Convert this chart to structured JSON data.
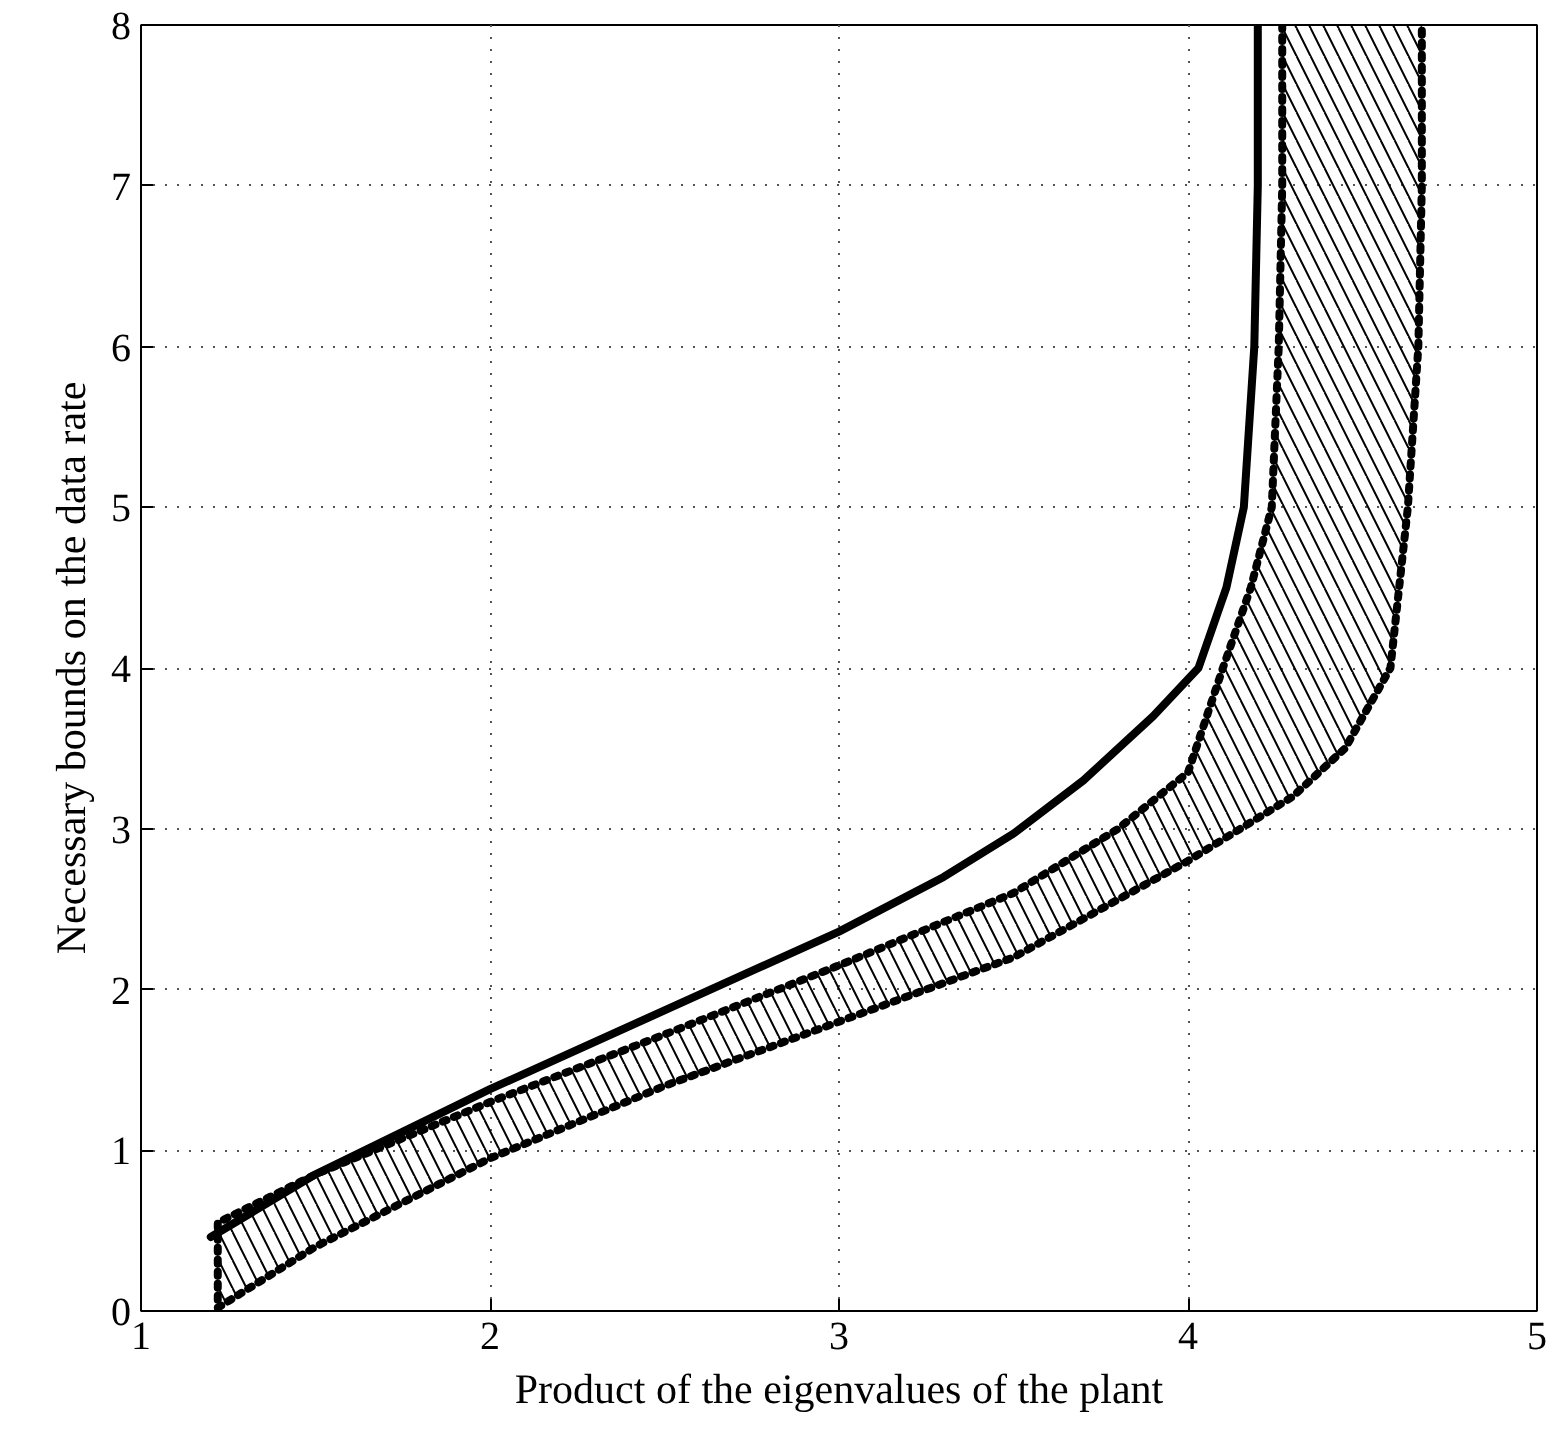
{
  "chart_data": {
    "type": "line",
    "xlabel": "Product of the eigenvalues of the plant",
    "ylabel": "Necessary bounds on the data rate",
    "xlim": [
      1,
      5
    ],
    "ylim": [
      0,
      8
    ],
    "xticks": [
      1,
      2,
      3,
      4,
      5
    ],
    "yticks": [
      0,
      1,
      2,
      3,
      4,
      5,
      6,
      7,
      8
    ],
    "grid": true,
    "series": [
      {
        "color": "#000000",
        "line_style": "solid",
        "x": [
          1.2,
          1.5,
          2,
          2.5,
          3,
          3.3,
          3.5,
          3.7,
          3.9,
          4.03,
          4.11,
          4.16,
          4.19,
          4.2,
          4.2
        ],
        "values": [
          0.46,
          0.85,
          1.38,
          1.87,
          2.36,
          2.7,
          2.97,
          3.3,
          3.7,
          4.0,
          4.5,
          5.0,
          6.0,
          7.0,
          8.0
        ]
      },
      {
        "type": "area",
        "color": "#000000",
        "line_style": "dotted",
        "x": [
          4.27,
          4.27,
          4.26,
          4.24,
          4.18,
          4.1,
          4.0,
          3.8,
          3.5,
          3,
          2.5,
          2,
          1.5,
          1.22,
          1.22,
          1.5,
          2,
          2.5,
          3,
          3.5,
          4.0,
          4.3,
          4.45,
          4.58,
          4.63,
          4.66,
          4.67,
          4.67
        ],
        "values": [
          8.0,
          7.0,
          6.0,
          5.0,
          4.5,
          4.0,
          3.35,
          3.0,
          2.6,
          2.15,
          1.72,
          1.3,
          0.85,
          0.55,
          0.02,
          0.4,
          0.95,
          1.4,
          1.8,
          2.2,
          2.8,
          3.2,
          3.5,
          4.0,
          5.0,
          6.0,
          7.0,
          8.0
        ]
      }
    ]
  }
}
